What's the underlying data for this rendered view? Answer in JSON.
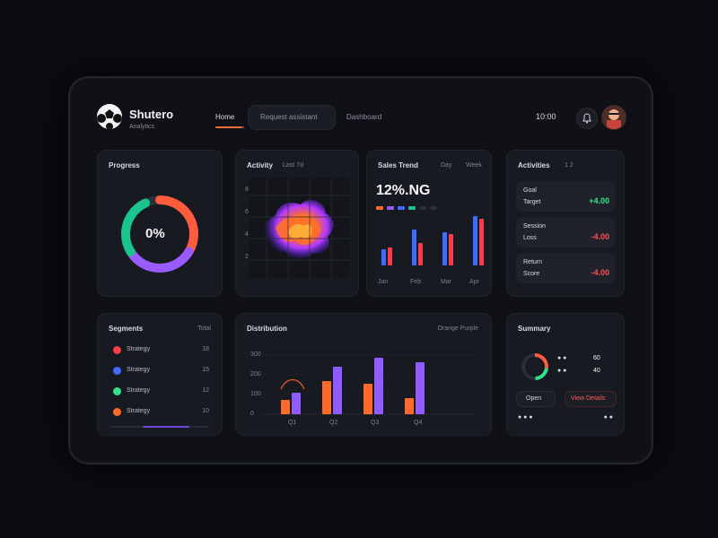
{
  "header": {
    "app_title": "Shutero",
    "subtitle": "Analytics",
    "nav_home": "Home",
    "search_placeholder": "Request assistant",
    "nav_other": "Dashboard",
    "right_text": "10:00"
  },
  "cards": {
    "progress": {
      "title": "Progress",
      "value": "0%"
    },
    "heatmap": {
      "title": "Activity",
      "subtitle": "Last 7d"
    },
    "metric": {
      "title": "Sales Trend",
      "kpi": "12%.NG",
      "tabs": [
        "Day",
        "Week"
      ],
      "x_labels": [
        "Jan",
        "Feb",
        "Mar",
        "Apr"
      ]
    },
    "activity": {
      "title": "Activities",
      "pager": "1 2",
      "items": [
        {
          "label": "Goal",
          "sub": "Target",
          "value": "+4.00",
          "value_color": "#2fe38a"
        },
        {
          "label": "Session",
          "sub": "Loss",
          "value": "-4.00",
          "value_color": "#ff4d4d"
        },
        {
          "label": "Return",
          "sub": "Score",
          "value": "-4.00",
          "value_color": "#ff4d4d"
        }
      ]
    },
    "segments": {
      "title": "Segments",
      "right": "Total",
      "items": [
        {
          "label": "Strategy",
          "value": "18",
          "color": "#ff3b4a"
        },
        {
          "label": "Strategy",
          "value": "15",
          "color": "#3f6bff"
        },
        {
          "label": "Strategy",
          "value": "12",
          "color": "#2fe38a"
        },
        {
          "label": "Strategy",
          "value": "10",
          "color": "#ff6a2a"
        }
      ]
    },
    "distribution": {
      "title": "Distribution",
      "legend": "Orange Purple",
      "y_ticks": [
        "300",
        "200",
        "100",
        "0"
      ],
      "x_labels": [
        "Q1",
        "Q2",
        "Q3",
        "Q4"
      ]
    },
    "summary": {
      "title": "Summary",
      "badge": "60",
      "badge2": "40",
      "left_button": "Open",
      "right_button": "View Details"
    }
  },
  "chart_data": {
    "type": "bar",
    "categories": [
      "Q1",
      "Q2",
      "Q3",
      "Q4"
    ],
    "series": [
      {
        "name": "Orange",
        "values": [
          30,
          70,
          65,
          35
        ]
      },
      {
        "name": "Purple",
        "values": [
          45,
          100,
          120,
          110
        ]
      }
    ],
    "ylim": [
      0,
      140
    ]
  }
}
